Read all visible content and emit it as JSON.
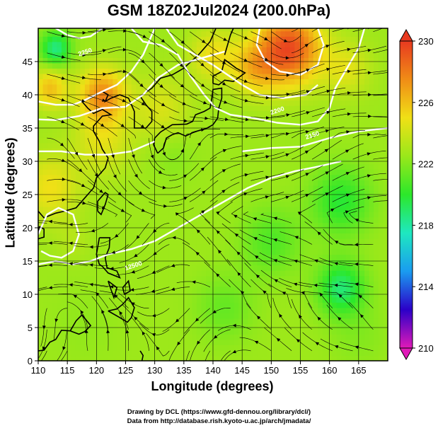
{
  "title": "GSM 18Z02Jul2024 (200.0hPa)",
  "chart_data": {
    "type": "heatmap",
    "title": "GSM 18Z02Jul2024 (200.0hPa)",
    "xlabel": "Longitude (degrees)",
    "ylabel": "Latitude  (degrees)",
    "xlim": [
      110,
      170
    ],
    "ylim": [
      0,
      50
    ],
    "xticks": [
      110,
      115,
      120,
      125,
      130,
      135,
      140,
      145,
      150,
      155,
      160,
      165
    ],
    "yticks": [
      0,
      5,
      10,
      15,
      20,
      25,
      30,
      35,
      40,
      45
    ],
    "grid": true,
    "colorbar": {
      "min": 210,
      "max": 230,
      "ticks": [
        210,
        214,
        218,
        222,
        226,
        230
      ],
      "colors": [
        "#e01ab8",
        "#2b00c8",
        "#1a9cf0",
        "#1ee8c0",
        "#2ce82a",
        "#9ae81a",
        "#f0e016",
        "#f08c16",
        "#e83a20"
      ]
    },
    "contour_labels": [
      "2250",
      "2200",
      "2150",
      "12500"
    ],
    "blobs": [
      {
        "lon": 153,
        "lat": 47,
        "val": 229.5,
        "r": 5.5
      },
      {
        "lon": 121,
        "lat": 40,
        "val": 227.5,
        "r": 4
      },
      {
        "lon": 112,
        "lat": 41,
        "val": 226,
        "r": 3
      },
      {
        "lon": 113,
        "lat": 47,
        "val": 218.5,
        "r": 2.6
      },
      {
        "lon": 112,
        "lat": 26,
        "val": 225,
        "r": 5
      },
      {
        "lon": 121,
        "lat": 33,
        "val": 224.5,
        "r": 5
      },
      {
        "lon": 131,
        "lat": 38,
        "val": 224.3,
        "r": 5
      },
      {
        "lon": 140,
        "lat": 46,
        "val": 225,
        "r": 4
      },
      {
        "lon": 147,
        "lat": 44,
        "val": 225.5,
        "r": 4
      },
      {
        "lon": 163,
        "lat": 44,
        "val": 224.5,
        "r": 4
      },
      {
        "lon": 133,
        "lat": 31,
        "val": 222,
        "r": 4
      },
      {
        "lon": 155,
        "lat": 36,
        "val": 222.5,
        "r": 4
      },
      {
        "lon": 162,
        "lat": 24,
        "val": 219.8,
        "r": 5
      },
      {
        "lon": 150,
        "lat": 18,
        "val": 220.8,
        "r": 5
      },
      {
        "lon": 162,
        "lat": 11,
        "val": 218.8,
        "r": 4
      },
      {
        "lon": 142,
        "lat": 8,
        "val": 221.3,
        "r": 5
      },
      {
        "lon": 116,
        "lat": 18,
        "val": 223.2,
        "r": 3
      },
      {
        "lon": 118,
        "lat": 6,
        "val": 222.3,
        "r": 6
      },
      {
        "lon": 165,
        "lat": 4,
        "val": 222,
        "r": 5
      }
    ],
    "base_value": 222.6
  },
  "credits": {
    "line1": "Drawing by DCL (https://www.gfd-dennou.org/library/dcl/)",
    "line2": "Data from http://database.rish.kyoto-u.ac.jp/arch/jmadata/"
  }
}
